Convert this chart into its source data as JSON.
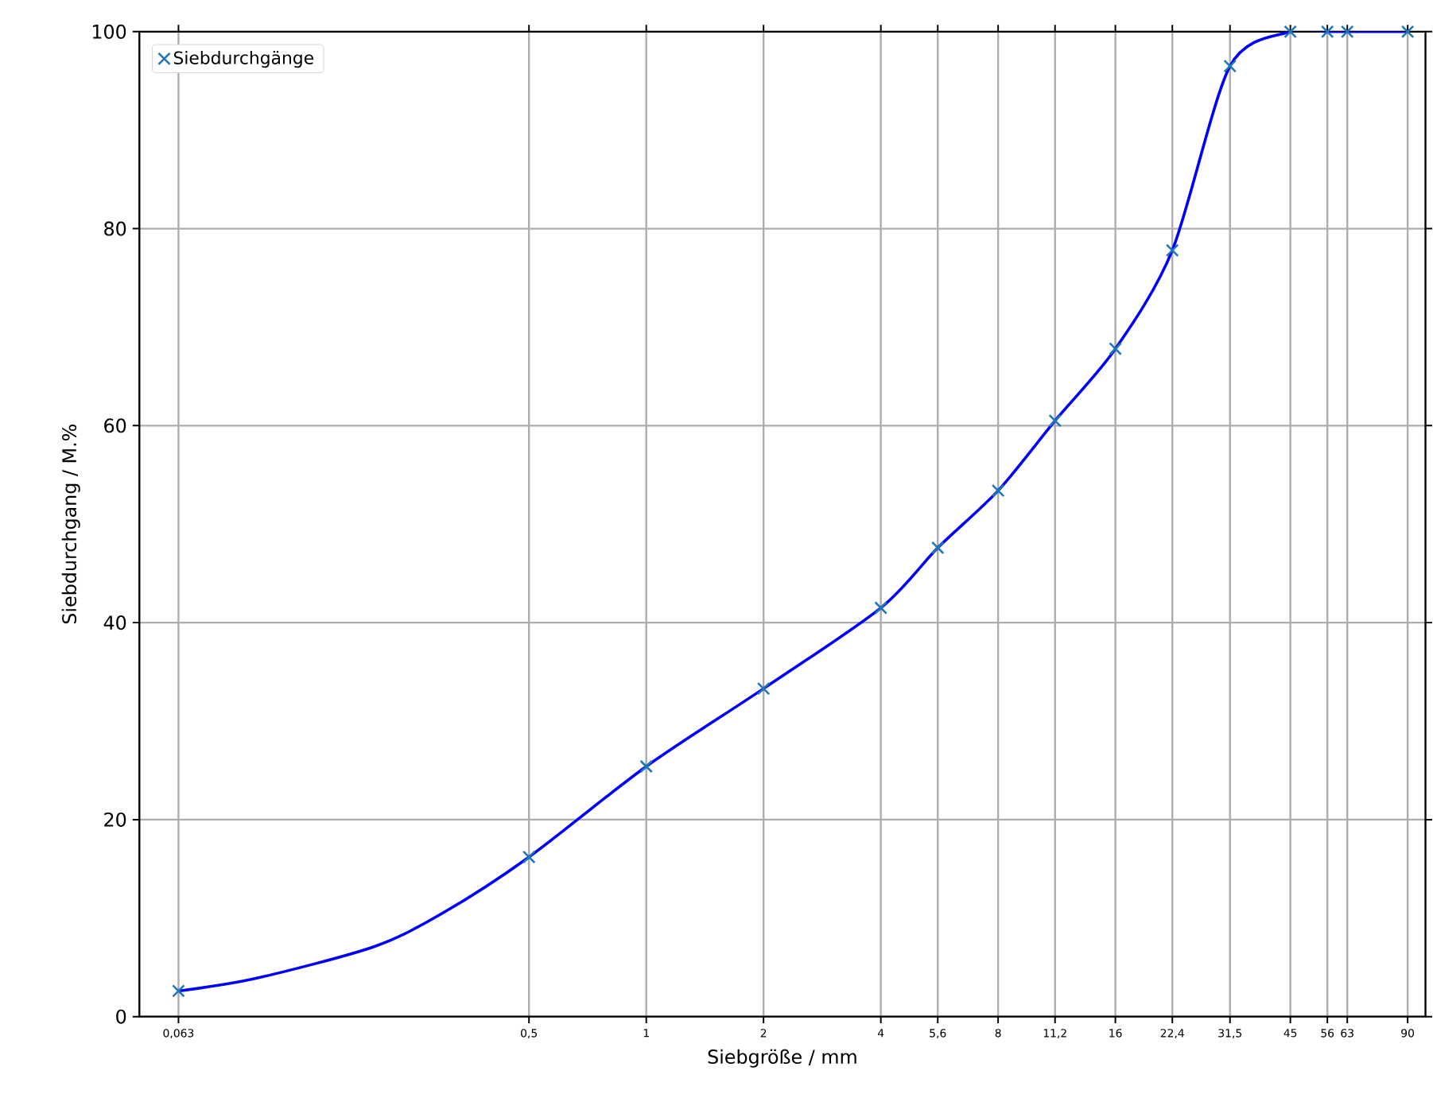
{
  "chart_data": {
    "type": "line",
    "xlabel": "Siebgröße / mm",
    "ylabel": "Siebdurchgang / M.%",
    "log": "x",
    "grid": true,
    "legend": "top left",
    "xlim": [
      0.05,
      100
    ],
    "ylim": [
      0,
      100
    ],
    "xticks": [
      {
        "value": 0.063,
        "label": "0,063"
      },
      {
        "value": 0.5,
        "label": "0,5"
      },
      1,
      2,
      4,
      {
        "value": 5.6,
        "label": "5,6"
      },
      8,
      {
        "value": 11.2,
        "label": "11,2"
      },
      16,
      {
        "value": 22.4,
        "label": "22,4"
      },
      {
        "value": 31.5,
        "label": "31,5"
      },
      45,
      56,
      63,
      90
    ],
    "yticks": [
      0,
      20,
      40,
      60,
      80,
      100
    ],
    "series": [
      {
        "color": "#0000ff",
        "line_style": "solid",
        "marker": "none",
        "x": [
          0.063,
          0.1,
          0.2,
          0.3,
          0.5,
          1,
          2,
          4,
          5.6,
          8,
          11.2,
          16,
          22.4,
          31.5,
          45,
          56,
          63,
          90
        ],
        "values": [
          2.6,
          3.9,
          7.1,
          10.5,
          16.2,
          25.4,
          33.3,
          41.5,
          47.6,
          53.4,
          60.5,
          67.8,
          77.8,
          96.5,
          100,
          100,
          100,
          100
        ]
      },
      {
        "type": "scatter",
        "name": "Siebdurchgänge",
        "color": "#1f77b4",
        "marker": "cross",
        "x": [
          0.063,
          0.5,
          1,
          2,
          4,
          5.6,
          8,
          11.2,
          16,
          22.4,
          31.5,
          45,
          56,
          63,
          90
        ],
        "values": [
          2.6,
          16.2,
          25.4,
          33.3,
          41.5,
          47.6,
          53.4,
          60.5,
          67.8,
          77.8,
          96.5,
          100,
          100,
          100,
          100
        ]
      }
    ]
  }
}
